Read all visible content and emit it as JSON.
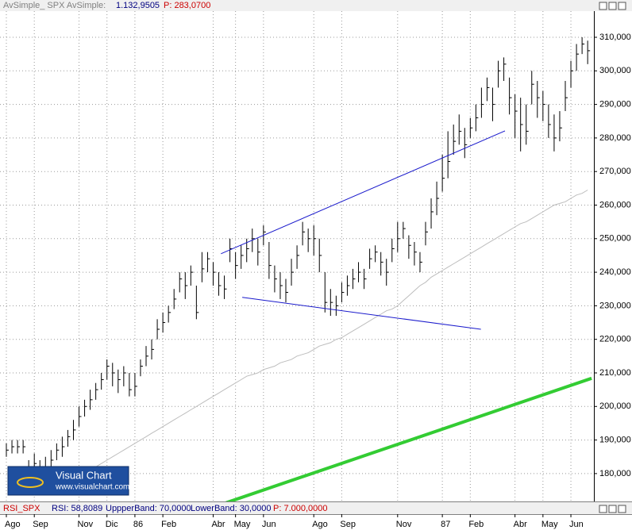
{
  "chart_data": {
    "type": "ohlc",
    "header": {
      "study": "AvSimple_ SPX AvSimple:",
      "value": "1.132,9505",
      "period": "P: 283,0700"
    },
    "footer": {
      "study": "RSI_SPX",
      "rsi": "RSI: 58,8089",
      "upper": "UppperBand: 70,0000",
      "lower": "LowerBand: 30,0000",
      "period": "P: 7.000,0000"
    },
    "logo": {
      "title": "Visual Chart",
      "url": "www.visualchart.com"
    },
    "categories": [
      "Ago",
      null,
      null,
      null,
      null,
      "Sep",
      null,
      null,
      null,
      null,
      null,
      null,
      null,
      "Nov",
      null,
      null,
      null,
      null,
      "Dic",
      null,
      null,
      null,
      null,
      "86",
      null,
      null,
      null,
      null,
      "Feb",
      null,
      null,
      null,
      null,
      null,
      null,
      null,
      null,
      "Abr",
      null,
      null,
      null,
      "May",
      null,
      null,
      null,
      null,
      "Jun",
      null,
      null,
      null,
      null,
      null,
      null,
      null,
      null,
      "Ago",
      null,
      null,
      null,
      null,
      "Sep",
      null,
      null,
      null,
      null,
      null,
      null,
      null,
      null,
      null,
      "Nov",
      null,
      null,
      null,
      null,
      null,
      null,
      null,
      "87",
      null,
      null,
      null,
      null,
      "Feb",
      null,
      null,
      null,
      null,
      null,
      null,
      null,
      "Abr",
      null,
      null,
      null,
      null,
      "May",
      null,
      null,
      null,
      null,
      "Jun",
      null,
      null,
      null
    ],
    "color": "#000000",
    "high": [
      189,
      190,
      190,
      190,
      184,
      186,
      184,
      185,
      187,
      189,
      191,
      193,
      196,
      200,
      202,
      205,
      207,
      210,
      214,
      213,
      211,
      212,
      210,
      210,
      214,
      218,
      220,
      226,
      228,
      230,
      235,
      240,
      240,
      242,
      236,
      246,
      246,
      243,
      240,
      239,
      250,
      246,
      248,
      250,
      253,
      250,
      254,
      249,
      242,
      240,
      238,
      244,
      248,
      255,
      253,
      254,
      250,
      240,
      235,
      233,
      237,
      239,
      241,
      243,
      241,
      247,
      248,
      246,
      244,
      250,
      255,
      255,
      251,
      249,
      246,
      255,
      262,
      267,
      275,
      282,
      284,
      287,
      283,
      286,
      290,
      295,
      298,
      295,
      303,
      304,
      298,
      293,
      292,
      290,
      300,
      297,
      294,
      290,
      287,
      288,
      297,
      303,
      308,
      310,
      309
    ],
    "low": [
      185,
      186,
      186,
      186,
      177,
      180,
      177,
      179,
      181,
      184,
      185,
      188,
      190,
      194,
      197,
      199,
      202,
      205,
      208,
      206,
      204,
      206,
      203,
      203,
      209,
      212,
      214,
      220,
      222,
      225,
      229,
      234,
      232,
      236,
      226,
      237,
      240,
      236,
      233,
      232,
      243,
      238,
      241,
      243,
      246,
      242,
      248,
      238,
      234,
      232,
      231,
      236,
      241,
      248,
      246,
      245,
      240,
      228,
      227,
      227,
      231,
      233,
      235,
      237,
      235,
      241,
      243,
      239,
      236,
      243,
      246,
      250,
      244,
      242,
      240,
      248,
      253,
      257,
      264,
      268,
      275,
      278,
      274,
      280,
      282,
      286,
      291,
      285,
      295,
      297,
      287,
      280,
      276,
      278,
      290,
      286,
      285,
      280,
      276,
      279,
      288,
      295,
      300,
      305,
      302
    ],
    "close": [
      187,
      188,
      188,
      188,
      181,
      183,
      180,
      182,
      184,
      187,
      188,
      191,
      193,
      197,
      200,
      202,
      205,
      208,
      212,
      210,
      208,
      210,
      205,
      206,
      212,
      215,
      217,
      223,
      225,
      228,
      232,
      238,
      236,
      240,
      228,
      241,
      244,
      240,
      236,
      235,
      247,
      242,
      245,
      247,
      250,
      246,
      252,
      242,
      238,
      236,
      234,
      240,
      245,
      252,
      250,
      250,
      245,
      231,
      231,
      230,
      234,
      236,
      238,
      240,
      238,
      244,
      246,
      243,
      240,
      247,
      250,
      253,
      248,
      246,
      243,
      252,
      258,
      262,
      268,
      273,
      279,
      282,
      278,
      283,
      286,
      290,
      295,
      290,
      300,
      302,
      292,
      288,
      284,
      282,
      296,
      292,
      290,
      284,
      280,
      283,
      292,
      300,
      305,
      308,
      306
    ],
    "moving_average": {
      "color": "#bdbdbd",
      "values": [
        null,
        null,
        null,
        null,
        null,
        null,
        null,
        null,
        null,
        null,
        null,
        null,
        null,
        null,
        null,
        181,
        182,
        183,
        184,
        185,
        186,
        187,
        188,
        189,
        190,
        191,
        192,
        193,
        194,
        195,
        196,
        197,
        198,
        199,
        200,
        201,
        202,
        203,
        204,
        205,
        206,
        207,
        208,
        209,
        209.5,
        210,
        211,
        211.5,
        212,
        213,
        213.5,
        214,
        215,
        215.5,
        216,
        217,
        218,
        218.5,
        219,
        220,
        220.5,
        221.5,
        222.5,
        223.5,
        224.5,
        225.5,
        226.5,
        227.5,
        228.5,
        229,
        230,
        231.5,
        233,
        234.5,
        236,
        237,
        238.5,
        239.5,
        240.5,
        241.5,
        242.5,
        243.5,
        244.5,
        245.5,
        246.5,
        247.5,
        248.5,
        249.5,
        250.5,
        251.5,
        252.5,
        253.5,
        254.5,
        255,
        256,
        257,
        258,
        259,
        260,
        260.5,
        261,
        262,
        263,
        263.5,
        264.5
      ]
    },
    "trendlines": [
      {
        "color": "#1a1acc",
        "width": 1,
        "x": [
          38.4,
          89.2
        ],
        "y": [
          245.5,
          282.1
        ]
      },
      {
        "color": "#1a1acc",
        "width": 1,
        "x": [
          42.2,
          84.9
        ],
        "y": [
          232.5,
          223
        ]
      },
      {
        "color": "#33cc33",
        "width": 4,
        "x": [
          39.3,
          104.7
        ],
        "y": [
          171.3,
          208.4
        ]
      }
    ],
    "ylim": [
      171.7,
      317.8
    ],
    "yticks": [
      {
        "value": 180,
        "label": "180,000"
      },
      {
        "value": 190,
        "label": "190,000"
      },
      {
        "value": 200,
        "label": "200,000"
      },
      {
        "value": 210,
        "label": "210,000"
      },
      {
        "value": 220,
        "label": "220,000"
      },
      {
        "value": 230,
        "label": "230,000"
      },
      {
        "value": 240,
        "label": "240,000"
      },
      {
        "value": 250,
        "label": "250,000"
      },
      {
        "value": 260,
        "label": "260,000"
      },
      {
        "value": 270,
        "label": "270,000"
      },
      {
        "value": 280,
        "label": "280,000"
      },
      {
        "value": 290,
        "label": "290,000"
      },
      {
        "value": 300,
        "label": "300,000"
      },
      {
        "value": 310,
        "label": "310,000"
      }
    ],
    "grid": true
  }
}
